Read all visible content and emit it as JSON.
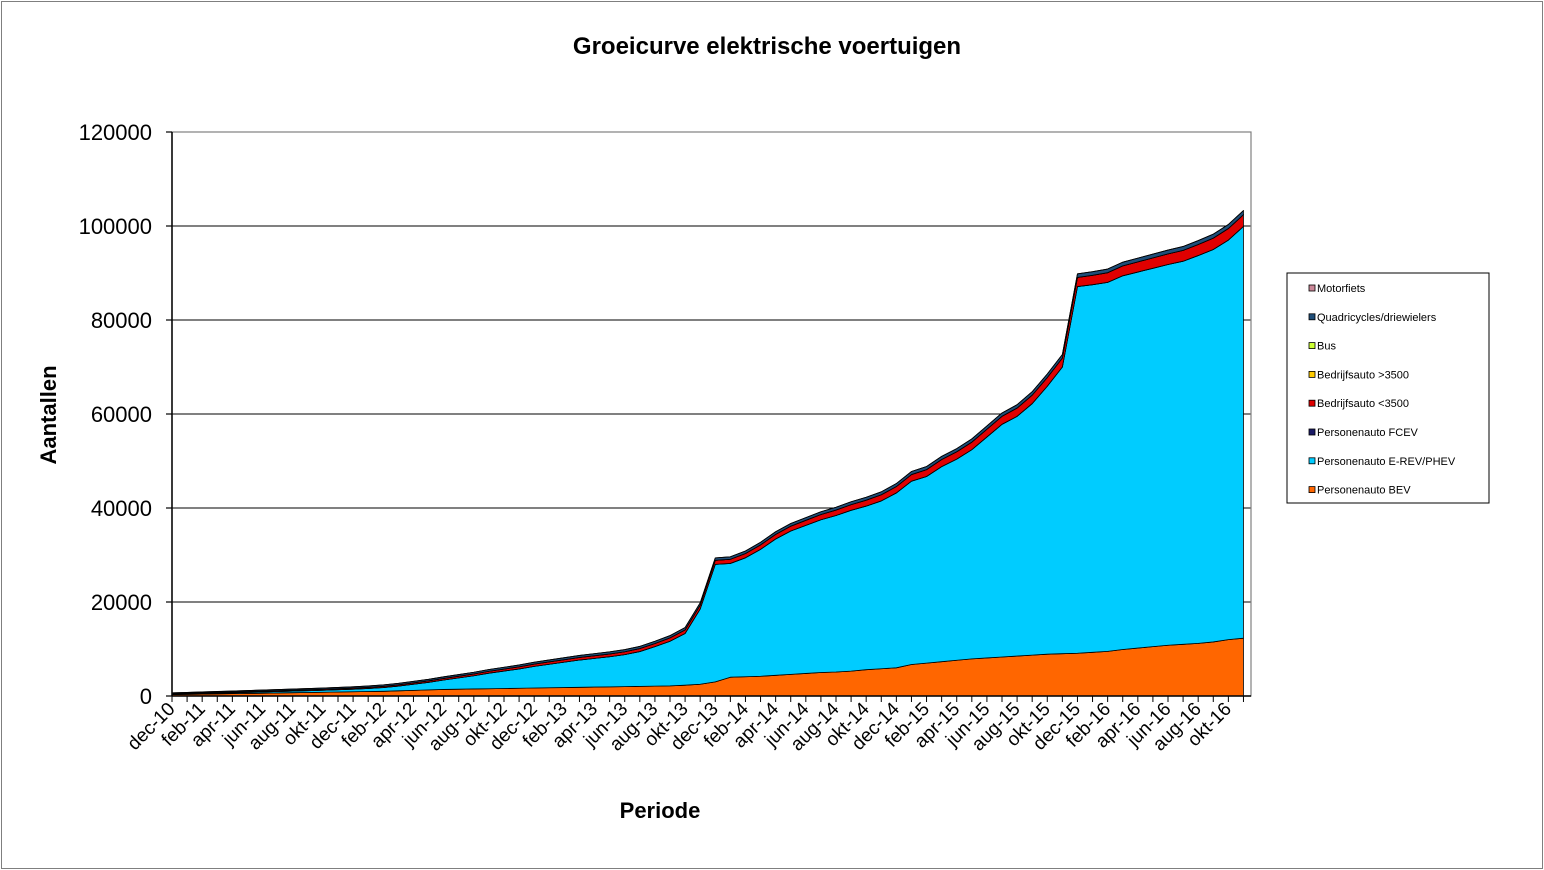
{
  "chart_data": {
    "type": "area",
    "stacked": true,
    "title": "Groeicurve elektrische voertuigen",
    "xlabel": "Periode",
    "ylabel": "Aantallen",
    "ylim": [
      0,
      120000
    ],
    "yticks": [
      0,
      20000,
      40000,
      60000,
      80000,
      100000,
      120000
    ],
    "grid": true,
    "legend_position": "right",
    "x_tick_labels": [
      "dec-10",
      "feb-11",
      "apr-11",
      "jun-11",
      "aug-11",
      "okt-11",
      "dec-11",
      "feb-12",
      "apr-12",
      "jun-12",
      "aug-12",
      "okt-12",
      "dec-12",
      "feb-13",
      "apr-13",
      "jun-13",
      "aug-13",
      "okt-13",
      "dec-13",
      "feb-14",
      "apr-14",
      "jun-14",
      "aug-14",
      "okt-14",
      "dec-14",
      "feb-15",
      "apr-15",
      "jun-15",
      "aug-15",
      "okt-15",
      "dec-15",
      "feb-16",
      "apr-16",
      "jun-16",
      "aug-16",
      "okt-16"
    ],
    "x": [
      "dec-10",
      "jan-11",
      "feb-11",
      "mrt-11",
      "apr-11",
      "mei-11",
      "jun-11",
      "jul-11",
      "aug-11",
      "sep-11",
      "okt-11",
      "nov-11",
      "dec-11",
      "jan-12",
      "feb-12",
      "mrt-12",
      "apr-12",
      "mei-12",
      "jun-12",
      "jul-12",
      "aug-12",
      "sep-12",
      "okt-12",
      "nov-12",
      "dec-12",
      "jan-13",
      "feb-13",
      "mrt-13",
      "apr-13",
      "mei-13",
      "jun-13",
      "jul-13",
      "aug-13",
      "sep-13",
      "okt-13",
      "nov-13",
      "dec-13",
      "jan-14",
      "feb-14",
      "mrt-14",
      "apr-14",
      "mei-14",
      "jun-14",
      "jul-14",
      "aug-14",
      "sep-14",
      "okt-14",
      "nov-14",
      "dec-14",
      "jan-15",
      "feb-15",
      "mrt-15",
      "apr-15",
      "mei-15",
      "jun-15",
      "jul-15",
      "aug-15",
      "sep-15",
      "okt-15",
      "nov-15",
      "dec-15",
      "jan-16",
      "feb-16",
      "mrt-16",
      "apr-16",
      "mei-16",
      "jun-16",
      "jul-16",
      "aug-16",
      "sep-16",
      "okt-16",
      "nov-16"
    ],
    "series": [
      {
        "name": "Personenauto BEV",
        "color": "#ff6600",
        "values": [
          300,
          350,
          400,
          450,
          500,
          550,
          600,
          650,
          700,
          750,
          800,
          850,
          900,
          950,
          1000,
          1100,
          1200,
          1300,
          1400,
          1450,
          1500,
          1550,
          1600,
          1650,
          1700,
          1750,
          1800,
          1850,
          1900,
          1950,
          2000,
          2050,
          2100,
          2150,
          2300,
          2500,
          3000,
          4000,
          4100,
          4200,
          4400,
          4600,
          4800,
          5000,
          5100,
          5300,
          5600,
          5800,
          6000,
          6700,
          7000,
          7300,
          7600,
          7900,
          8100,
          8300,
          8500,
          8700,
          8900,
          9000,
          9100,
          9300,
          9500,
          9900,
          10200,
          10500,
          10800,
          11000,
          11200,
          11500,
          12000,
          12300
        ]
      },
      {
        "name": "Personenauto E-REV/PHEV",
        "color": "#00ccff",
        "values": [
          50,
          80,
          120,
          150,
          180,
          220,
          260,
          300,
          340,
          380,
          420,
          480,
          550,
          650,
          800,
          1000,
          1300,
          1600,
          2000,
          2400,
          2800,
          3300,
          3700,
          4100,
          4600,
          5000,
          5400,
          5800,
          6100,
          6400,
          6800,
          7400,
          8400,
          9500,
          11000,
          16000,
          25000,
          24200,
          25300,
          27000,
          29000,
          30500,
          31500,
          32500,
          33300,
          34200,
          34800,
          35700,
          37200,
          39000,
          39700,
          41500,
          42800,
          44500,
          47000,
          49500,
          51000,
          53500,
          57000,
          61000,
          78000,
          78200,
          78500,
          79500,
          80000,
          80500,
          81000,
          81500,
          82500,
          83500,
          85000,
          87600
        ]
      },
      {
        "name": "Personenauto FCEV",
        "color": "#1a1a66",
        "values": [
          10,
          10,
          10,
          10,
          10,
          10,
          10,
          10,
          10,
          10,
          10,
          10,
          10,
          10,
          10,
          10,
          10,
          10,
          10,
          10,
          10,
          10,
          10,
          10,
          10,
          10,
          10,
          10,
          10,
          10,
          10,
          10,
          10,
          10,
          10,
          10,
          10,
          10,
          10,
          10,
          10,
          10,
          10,
          10,
          10,
          10,
          10,
          10,
          10,
          10,
          10,
          10,
          10,
          10,
          10,
          10,
          10,
          10,
          10,
          10,
          10,
          10,
          10,
          10,
          10,
          10,
          10,
          10,
          10,
          10,
          10,
          10
        ]
      },
      {
        "name": "Bedrijfsauto <3500",
        "color": "#e00000",
        "values": [
          150,
          150,
          160,
          160,
          170,
          170,
          180,
          180,
          190,
          190,
          200,
          210,
          220,
          230,
          250,
          270,
          290,
          310,
          330,
          350,
          380,
          400,
          420,
          450,
          480,
          500,
          520,
          540,
          560,
          580,
          600,
          630,
          660,
          700,
          750,
          800,
          850,
          880,
          900,
          940,
          980,
          1020,
          1060,
          1100,
          1150,
          1200,
          1250,
          1300,
          1350,
          1400,
          1450,
          1500,
          1550,
          1600,
          1650,
          1700,
          1750,
          1800,
          1850,
          1900,
          1950,
          2000,
          2050,
          2100,
          2150,
          2200,
          2250,
          2300,
          2350,
          2400,
          2450,
          2500
        ]
      },
      {
        "name": "Bedrijfsauto >3500",
        "color": "#ffcc00",
        "values": [
          5,
          5,
          5,
          5,
          5,
          5,
          5,
          5,
          5,
          5,
          5,
          5,
          5,
          5,
          5,
          5,
          5,
          5,
          5,
          5,
          5,
          5,
          5,
          5,
          5,
          5,
          5,
          5,
          5,
          5,
          5,
          5,
          5,
          5,
          5,
          5,
          5,
          5,
          5,
          5,
          5,
          5,
          5,
          5,
          5,
          5,
          5,
          5,
          5,
          5,
          5,
          5,
          5,
          5,
          5,
          5,
          5,
          5,
          5,
          5,
          5,
          5,
          5,
          5,
          5,
          5,
          5,
          5,
          5,
          5,
          5,
          5
        ]
      },
      {
        "name": "Bus",
        "color": "#ccff33",
        "values": [
          5,
          5,
          5,
          5,
          5,
          5,
          5,
          5,
          5,
          5,
          5,
          5,
          5,
          5,
          5,
          5,
          5,
          5,
          5,
          5,
          5,
          5,
          5,
          5,
          5,
          5,
          5,
          5,
          5,
          5,
          5,
          5,
          5,
          5,
          5,
          5,
          5,
          5,
          5,
          5,
          5,
          5,
          5,
          5,
          5,
          5,
          5,
          5,
          5,
          5,
          5,
          5,
          5,
          5,
          5,
          5,
          5,
          5,
          5,
          5,
          5,
          5,
          5,
          5,
          5,
          5,
          5,
          5,
          5,
          5,
          5,
          5
        ]
      },
      {
        "name": "Quadricycles/driewielers",
        "color": "#1f4e79",
        "values": [
          150,
          160,
          170,
          180,
          190,
          200,
          210,
          220,
          230,
          240,
          250,
          260,
          270,
          280,
          290,
          300,
          310,
          320,
          330,
          340,
          350,
          360,
          370,
          380,
          390,
          400,
          410,
          420,
          430,
          440,
          450,
          460,
          470,
          480,
          490,
          500,
          510,
          520,
          530,
          540,
          550,
          560,
          570,
          580,
          590,
          600,
          610,
          620,
          630,
          640,
          650,
          660,
          670,
          680,
          690,
          700,
          710,
          720,
          730,
          740,
          750,
          760,
          770,
          780,
          790,
          800,
          810,
          820,
          830,
          840,
          850,
          860
        ]
      },
      {
        "name": "Motorfiets",
        "color": "#cc8899",
        "values": [
          10,
          10,
          10,
          10,
          10,
          10,
          10,
          10,
          10,
          10,
          10,
          10,
          10,
          10,
          10,
          10,
          10,
          10,
          10,
          10,
          10,
          10,
          10,
          10,
          10,
          10,
          10,
          10,
          10,
          10,
          10,
          10,
          10,
          10,
          10,
          10,
          10,
          10,
          10,
          10,
          10,
          10,
          10,
          10,
          10,
          10,
          10,
          10,
          10,
          10,
          10,
          10,
          10,
          10,
          10,
          10,
          10,
          10,
          10,
          10,
          10,
          10,
          10,
          10,
          10,
          10,
          10,
          10,
          10,
          10,
          10,
          10
        ]
      }
    ],
    "legend_order": [
      "Motorfiets",
      "Quadricycles/driewielers",
      "Bus",
      "Bedrijfsauto >3500",
      "Bedrijfsauto <3500",
      "Personenauto FCEV",
      "Personenauto E-REV/PHEV",
      "Personenauto BEV"
    ],
    "legend_labels": [
      "Motorfiets",
      "Quadricycles/driewielers",
      "Bus",
      "Bedrijfsauto >3500",
      "Bedrijfsauto <3500",
      "Personenauto FCEV",
      "Personenauto E-REV/PHEV",
      "Personenauto BEV"
    ]
  }
}
